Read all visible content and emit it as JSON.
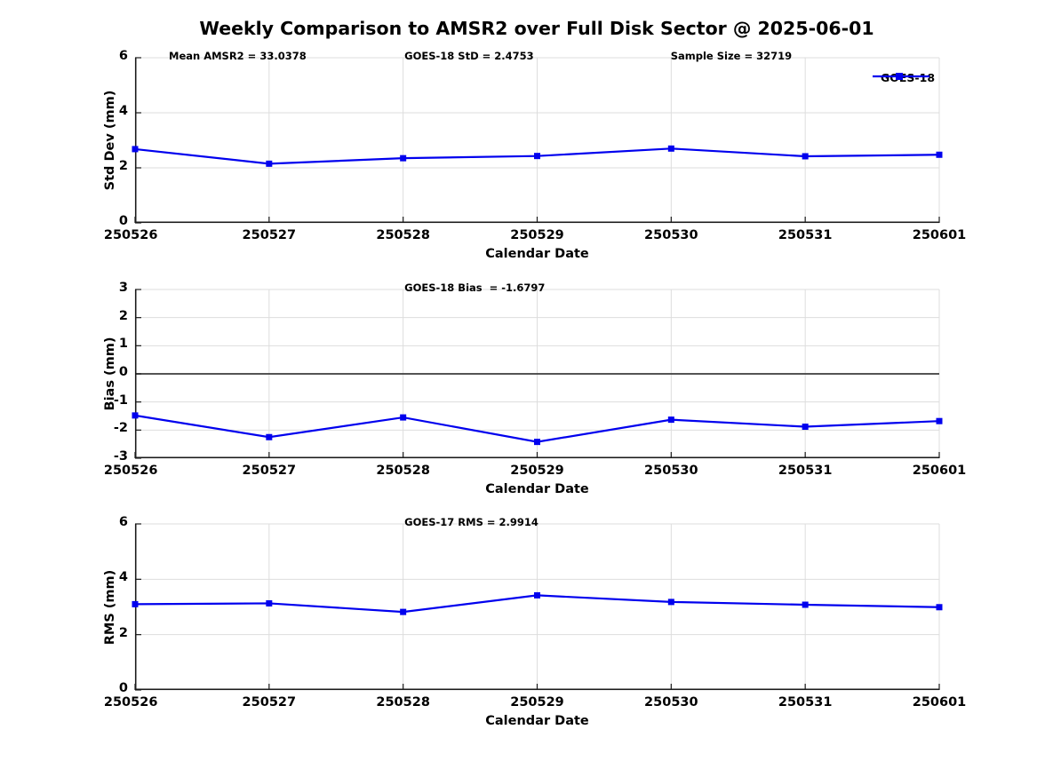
{
  "title": "Weekly Comparison to AMSR2 over Full Disk Sector @ 2025-06-01",
  "xlabel": "Calendar Date",
  "legend": {
    "label": "GOES-18"
  },
  "colors": {
    "line": "#0000EE",
    "grid": "#DDDDDD",
    "axis": "#1A1A1A",
    "zero_line": "#3C3C3C",
    "text": "#000000",
    "background": "#FFFFFF"
  },
  "categories": [
    "250526",
    "250527",
    "250528",
    "250529",
    "250530",
    "250531",
    "250601"
  ],
  "chart_data": [
    {
      "type": "line",
      "name": "std-dev",
      "ylabel": "Std Dev (mm)",
      "xlabel": "Calendar Date",
      "ylim": [
        0,
        6
      ],
      "yticks": [
        0,
        2,
        4,
        6
      ],
      "grid": true,
      "legend_position": "top-right",
      "annotations": [
        {
          "text": "Mean AMSR2 = 33.0378",
          "x_pct": 4.2
        },
        {
          "text": "GOES-18 StD = 2.4753",
          "x_pct": 33.5
        },
        {
          "text": "Sample Size = 32719",
          "x_pct": 66.6
        }
      ],
      "series": [
        {
          "name": "GOES-18",
          "values": [
            2.68,
            2.15,
            2.35,
            2.43,
            2.7,
            2.42,
            2.4753
          ]
        }
      ]
    },
    {
      "type": "line",
      "name": "bias",
      "ylabel": "Bias (mm)",
      "xlabel": "Calendar Date",
      "ylim": [
        -3,
        3
      ],
      "yticks": [
        3,
        2,
        1,
        0,
        -1,
        -2,
        -3
      ],
      "grid": true,
      "zero_line": true,
      "annotations": [
        {
          "text": "GOES-18 Bias  = -1.6797",
          "x_pct": 33.5
        }
      ],
      "series": [
        {
          "name": "GOES-18",
          "values": [
            -1.48,
            -2.25,
            -1.55,
            -2.42,
            -1.63,
            -1.88,
            -1.6797
          ]
        }
      ]
    },
    {
      "type": "line",
      "name": "rms",
      "ylabel": "RMS (mm)",
      "xlabel": "Calendar Date",
      "ylim": [
        0,
        6
      ],
      "yticks": [
        0,
        2,
        4,
        6
      ],
      "grid": true,
      "annotations": [
        {
          "text": "GOES-17 RMS = 2.9914",
          "x_pct": 33.5
        }
      ],
      "series": [
        {
          "name": "GOES-18",
          "values": [
            3.1,
            3.13,
            2.82,
            3.42,
            3.18,
            3.08,
            2.9914
          ]
        }
      ]
    }
  ]
}
